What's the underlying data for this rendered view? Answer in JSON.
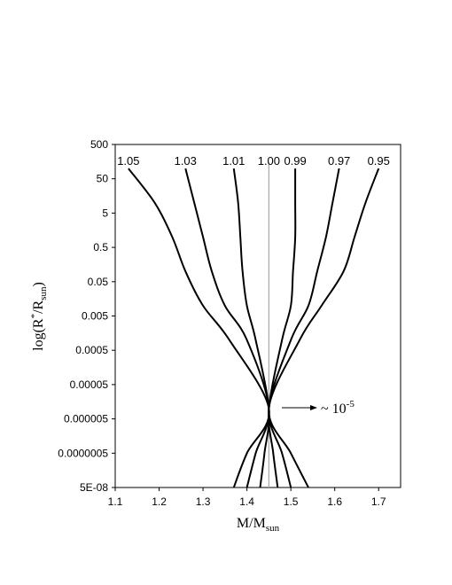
{
  "chart_data": {
    "type": "line",
    "xlabel": {
      "main": "M/M",
      "sub": "sun"
    },
    "ylabel": {
      "main": "log(R",
      "star": "*",
      "mid": "/R",
      "sub": "sun",
      "end": ")"
    },
    "xlim": [
      1.1,
      1.75
    ],
    "xticks": [
      "1.1",
      "1.2",
      "1.3",
      "1.4",
      "1.5",
      "1.6",
      "1.7"
    ],
    "xtick_values": [
      1.1,
      1.2,
      1.3,
      1.4,
      1.5,
      1.6,
      1.7
    ],
    "y_scale": "log",
    "ylim": [
      5e-08,
      500
    ],
    "yticks": [
      "500",
      "50",
      "5",
      "0.5",
      "0.05",
      "0.005",
      "0.0005",
      "0.00005",
      "0.000005",
      "0.0000005",
      "5E-08"
    ],
    "ytick_values": [
      500,
      50,
      5,
      0.5,
      0.05,
      0.005,
      0.0005,
      5e-05,
      5e-06,
      5e-07,
      5e-08
    ],
    "vertical_line": {
      "x": 1.45,
      "color": "#aaaaaa"
    },
    "annotation": {
      "text": "~ 10",
      "exponent": "-5",
      "points_to": [
        1.45,
        1e-05
      ]
    },
    "series": [
      {
        "name": "1.05",
        "points": [
          [
            1.37,
            5e-08
          ],
          [
            1.4,
            5e-07
          ],
          [
            1.45,
            1e-05
          ],
          [
            1.36,
            0.001
          ],
          [
            1.3,
            0.01
          ],
          [
            1.26,
            0.1
          ],
          [
            1.23,
            1
          ],
          [
            1.19,
            10
          ],
          [
            1.13,
            100
          ]
        ]
      },
      {
        "name": "1.03",
        "points": [
          [
            1.4,
            5e-08
          ],
          [
            1.42,
            5e-07
          ],
          [
            1.45,
            1e-05
          ],
          [
            1.4,
            0.001
          ],
          [
            1.35,
            0.01
          ],
          [
            1.32,
            0.1
          ],
          [
            1.3,
            1
          ],
          [
            1.28,
            10
          ],
          [
            1.26,
            100
          ]
        ]
      },
      {
        "name": "1.01",
        "points": [
          [
            1.43,
            5e-08
          ],
          [
            1.44,
            5e-07
          ],
          [
            1.45,
            1e-05
          ],
          [
            1.42,
            0.001
          ],
          [
            1.4,
            0.01
          ],
          [
            1.39,
            0.1
          ],
          [
            1.385,
            1
          ],
          [
            1.38,
            10
          ],
          [
            1.37,
            100
          ]
        ]
      },
      {
        "name": "1.00",
        "points": [
          [
            1.45,
            5e-08
          ],
          [
            1.45,
            100
          ]
        ]
      },
      {
        "name": "0.99",
        "points": [
          [
            1.47,
            5e-08
          ],
          [
            1.46,
            5e-07
          ],
          [
            1.45,
            1e-05
          ],
          [
            1.48,
            0.001
          ],
          [
            1.5,
            0.01
          ],
          [
            1.505,
            0.1
          ],
          [
            1.51,
            1
          ],
          [
            1.51,
            10
          ],
          [
            1.51,
            100
          ]
        ]
      },
      {
        "name": "0.97",
        "points": [
          [
            1.5,
            5e-08
          ],
          [
            1.48,
            5e-07
          ],
          [
            1.45,
            1e-05
          ],
          [
            1.5,
            0.001
          ],
          [
            1.54,
            0.01
          ],
          [
            1.56,
            0.1
          ],
          [
            1.58,
            1
          ],
          [
            1.595,
            10
          ],
          [
            1.61,
            100
          ]
        ]
      },
      {
        "name": "0.95",
        "points": [
          [
            1.54,
            5e-08
          ],
          [
            1.5,
            5e-07
          ],
          [
            1.45,
            1e-05
          ],
          [
            1.52,
            0.001
          ],
          [
            1.57,
            0.01
          ],
          [
            1.62,
            0.1
          ],
          [
            1.645,
            1
          ],
          [
            1.67,
            10
          ],
          [
            1.7,
            100
          ]
        ]
      }
    ]
  }
}
